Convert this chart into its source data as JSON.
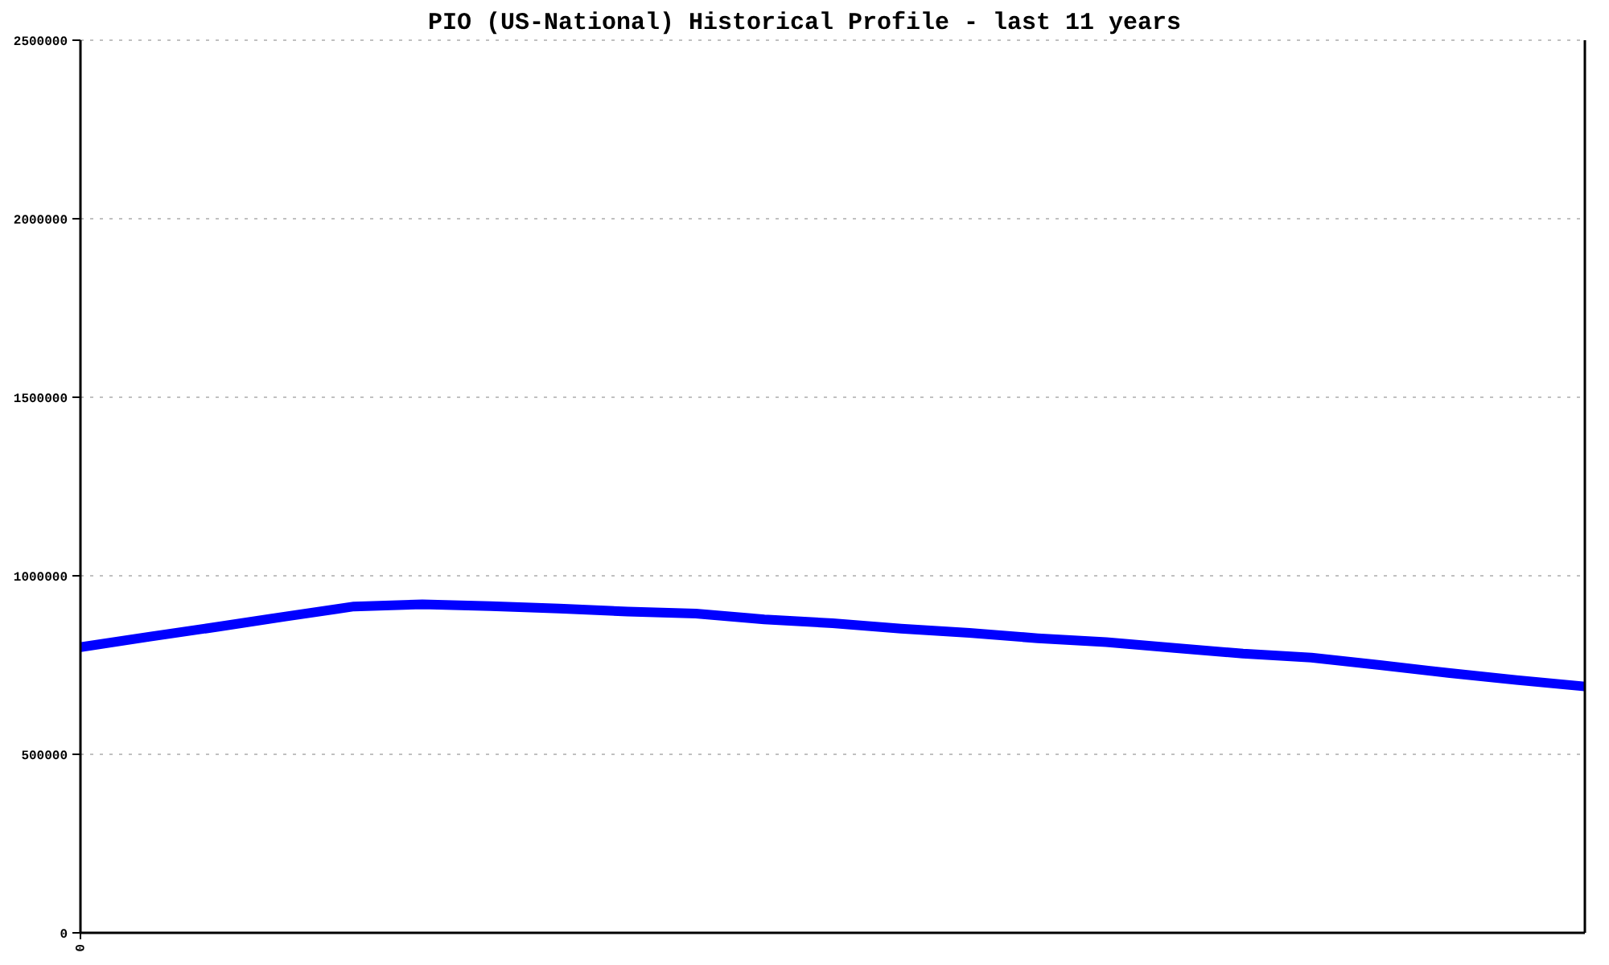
{
  "chart_data": {
    "type": "line",
    "title": "PIO (US-National) Historical Profile - last 11 years",
    "categories": [
      "0",
      null,
      null,
      null,
      null,
      null,
      null,
      null,
      null,
      null,
      null,
      null,
      null,
      null,
      null,
      null,
      null,
      null,
      null,
      null,
      null,
      null,
      null
    ],
    "series": [
      {
        "color": "#0000ff",
        "values": [
          800000,
          829000,
          857000,
          886000,
          914000,
          920000,
          915000,
          908000,
          900000,
          894000,
          878000,
          867000,
          852000,
          840000,
          825000,
          814000,
          798000,
          782000,
          771000,
          750000,
          728000,
          708000,
          690000
        ]
      }
    ],
    "ylim": [
      0,
      2500000
    ],
    "yticks": [
      0,
      500000,
      1000000,
      1500000,
      2000000,
      2500000
    ],
    "grid": "y"
  }
}
